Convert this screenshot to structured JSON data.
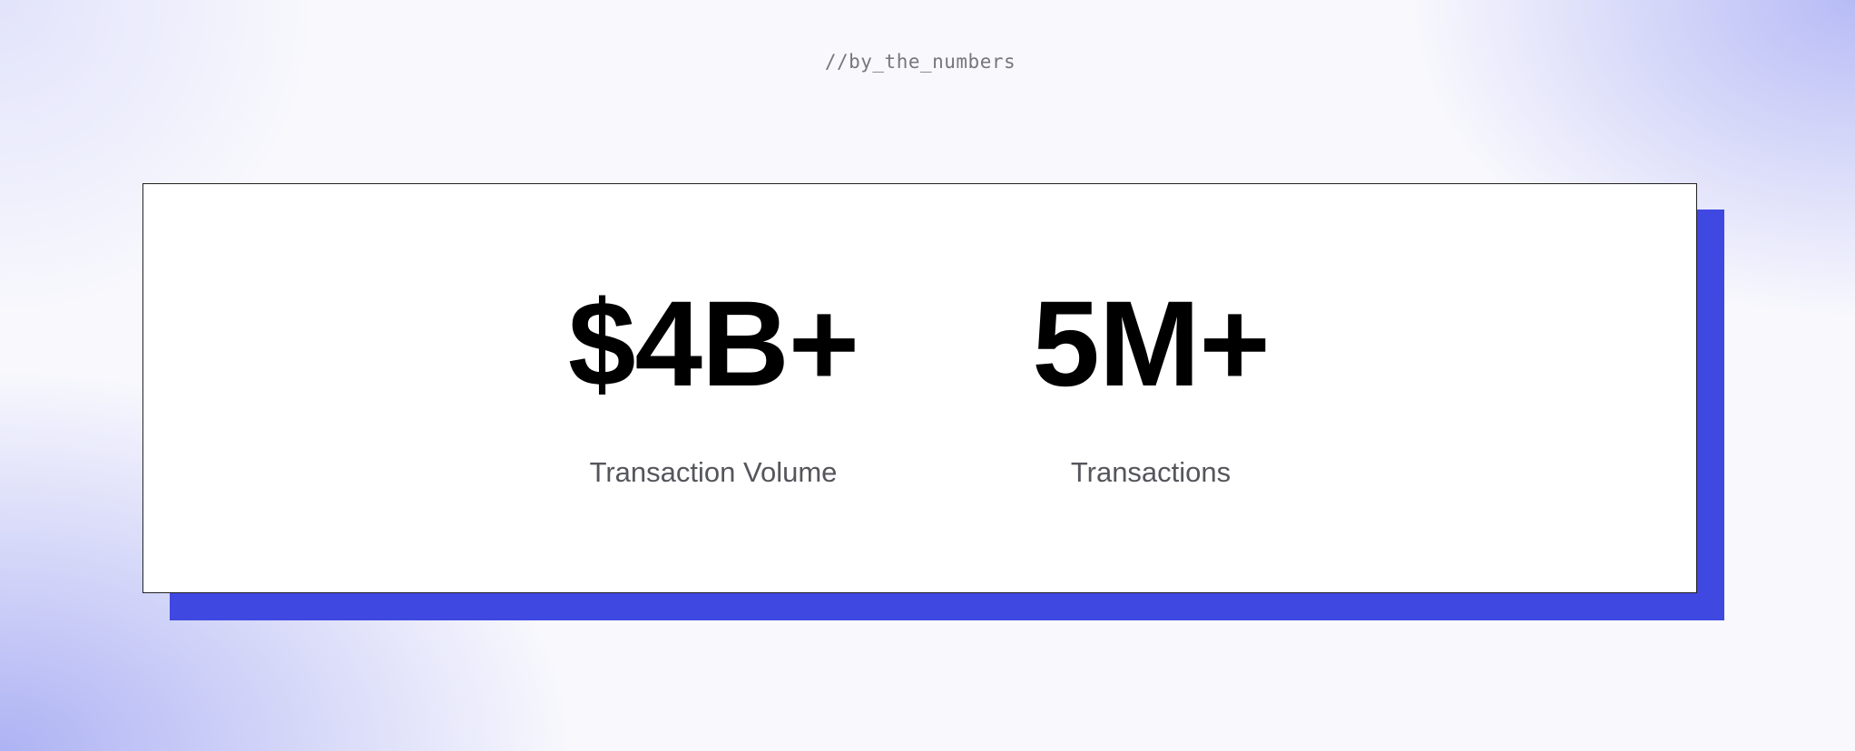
{
  "eyebrow": "//by_the_numbers",
  "stats": [
    {
      "value": "$4B+",
      "label": "Transaction Volume"
    },
    {
      "value": "5M+",
      "label": "Transactions"
    }
  ],
  "colors": {
    "accent": "#3f48e0",
    "card_border": "#222222",
    "label": "#55565c"
  }
}
